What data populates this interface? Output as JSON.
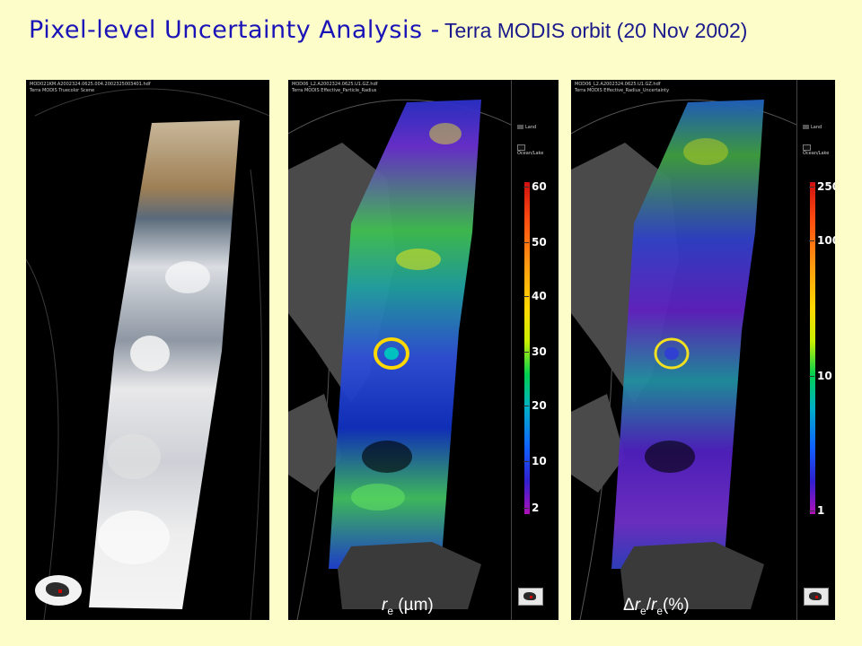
{
  "title": {
    "main": "Pixel-level Uncertainty Analysis -",
    "sub": "Terra MODIS orbit (20 Nov 2002)"
  },
  "panels": [
    {
      "header_line1": "MOD021KM.A2002324.0625.004.2002325003401.hdf",
      "header_line2": "Terra MODIS Truecolor Scene"
    },
    {
      "header_line1": "MOD06_L2.A2002324.0625.U1.GZ.hdf",
      "header_line2": "Terra MODIS Effective_Particle_Radius",
      "legend": [
        "Land",
        "Ocean/Lake"
      ],
      "ticks": [
        "60",
        "50",
        "40",
        "30",
        "20",
        "10",
        "2"
      ],
      "label_main": "r",
      "label_sub": "e",
      "label_unit": " (µm)"
    },
    {
      "header_line1": "MOD06_L2.A2002324.0625.U1.GZ.hdf",
      "header_line2": "Terra MODIS Effective_Radius_Uncertainty",
      "legend": [
        "Land",
        "Ocean/Lake"
      ],
      "ticks": [
        "250",
        "100",
        "10",
        "1"
      ],
      "label_delta": "Δ",
      "label_r1": "r",
      "label_sub1": "e",
      "label_slash": "/",
      "label_r2": "r",
      "label_sub2": "e",
      "label_unit": "(%)"
    }
  ],
  "colors": {
    "background": "#fdfdc9",
    "title": "#1a14b8"
  }
}
